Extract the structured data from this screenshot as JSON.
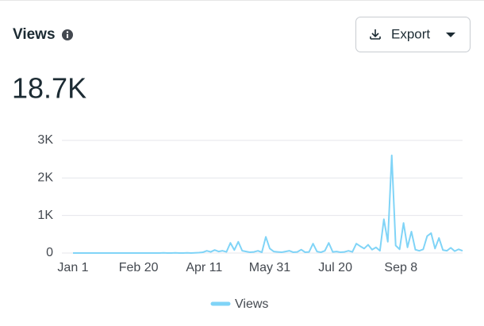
{
  "summary": {
    "value": "18.7K"
  },
  "toolbar": {
    "button": "Export"
  },
  "chart_data": {
    "type": "line",
    "title": "Views",
    "x": [
      0,
      3,
      6,
      9,
      12,
      15,
      18,
      21,
      24,
      27,
      30,
      33,
      36,
      39,
      42,
      45,
      48,
      51,
      54,
      57,
      60,
      63,
      66,
      69,
      72,
      75,
      78,
      81,
      84,
      87,
      90,
      93,
      96,
      99,
      102,
      105,
      108,
      111,
      114,
      117,
      120,
      123,
      126,
      129,
      132,
      135,
      138,
      141,
      144,
      147,
      150,
      153,
      156,
      159,
      162,
      165,
      168,
      171,
      174,
      177,
      180,
      183,
      186,
      189,
      192,
      195,
      198,
      201,
      204,
      207,
      210,
      213,
      216,
      219,
      222,
      225,
      228,
      231,
      234,
      237,
      240,
      243,
      246,
      249,
      252,
      255,
      258,
      261,
      264,
      267,
      270,
      273,
      276,
      279,
      282,
      285,
      288,
      291,
      294,
      297
    ],
    "series": [
      {
        "name": "Views",
        "color": "#80d4f7",
        "values": [
          0,
          0,
          0,
          0,
          0,
          0,
          0,
          0,
          0,
          0,
          0,
          0,
          0,
          0,
          0,
          0,
          0,
          0,
          0,
          0,
          0,
          0,
          0,
          5,
          0,
          0,
          5,
          0,
          0,
          5,
          0,
          5,
          10,
          20,
          60,
          30,
          80,
          40,
          60,
          30,
          270,
          80,
          300,
          60,
          40,
          20,
          30,
          60,
          20,
          430,
          120,
          40,
          30,
          20,
          40,
          60,
          20,
          30,
          90,
          20,
          30,
          250,
          40,
          20,
          60,
          270,
          30,
          40,
          20,
          30,
          60,
          30,
          250,
          180,
          120,
          220,
          90,
          150,
          60,
          900,
          300,
          2600,
          200,
          100,
          800,
          150,
          570,
          90,
          60,
          100,
          450,
          530,
          120,
          400,
          80,
          60,
          140,
          50,
          100,
          60
        ]
      }
    ],
    "xlim": [
      0,
      297
    ],
    "xticks": [
      {
        "value": 0,
        "label": "Jan 1"
      },
      {
        "value": 50,
        "label": "Feb 20"
      },
      {
        "value": 100,
        "label": "Apr 11"
      },
      {
        "value": 150,
        "label": "May 31"
      },
      {
        "value": 200,
        "label": "Jul 20"
      },
      {
        "value": 250,
        "label": "Sep 8"
      }
    ],
    "ylim": [
      0,
      3000
    ],
    "yticks": [
      0,
      {
        "value": 1000,
        "label": "1K"
      },
      {
        "value": 2000,
        "label": "2K"
      },
      {
        "value": 3000,
        "label": "3K"
      }
    ],
    "grid": true
  }
}
